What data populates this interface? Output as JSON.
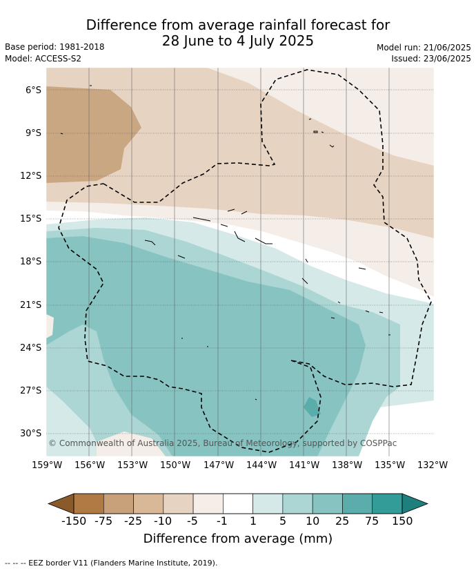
{
  "header": {
    "title_line1": "Difference from average rainfall forecast for",
    "title_line2": "28 June to 4 July 2025",
    "base_period": "Base period: 1981-2018",
    "model": "Model: ACCESS-S2",
    "model_run": "Model run: 21/06/2025",
    "issued": "Issued: 23/06/2025"
  },
  "map": {
    "lat_labels": [
      "6°S",
      "9°S",
      "12°S",
      "15°S",
      "18°S",
      "21°S",
      "24°S",
      "27°S",
      "30°S"
    ],
    "lon_labels": [
      "159°W",
      "156°W",
      "153°W",
      "150°W",
      "147°W",
      "144°W",
      "141°W",
      "138°W",
      "135°W",
      "132°W"
    ],
    "copyright": "© Commonwealth of Australia 2025, Bureau of Meteorology, supported by COSPPac"
  },
  "colorbar": {
    "ticks": [
      "-150",
      "-75",
      "-25",
      "-10",
      "-5",
      "-1",
      "1",
      "5",
      "10",
      "25",
      "75",
      "150"
    ],
    "colors": [
      "#8a5a2b",
      "#b07a45",
      "#c8a07a",
      "#d8b896",
      "#e6d3c2",
      "#f5ede7",
      "#ffffff",
      "#d4e9e8",
      "#acd6d4",
      "#86c3c1",
      "#5aadaa",
      "#339c98",
      "#1f7f7c"
    ],
    "label": "Difference from average (mm)"
  },
  "footer": {
    "legend": "--  --  -- EEZ border V11 (Flanders Marine Institute, 2019)."
  }
}
